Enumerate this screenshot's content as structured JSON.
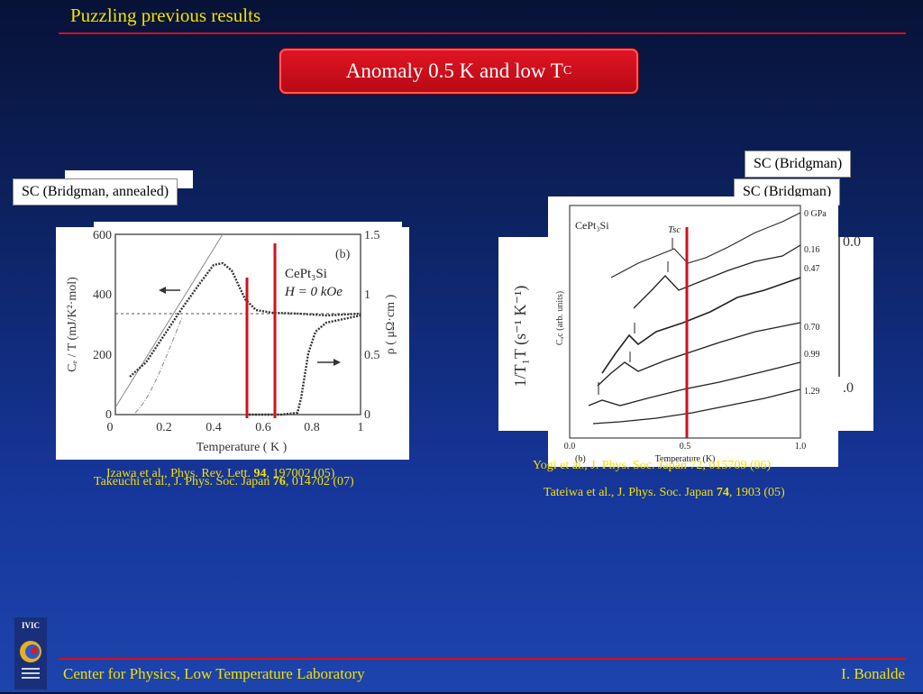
{
  "slide": {
    "title": "Puzzling previous results",
    "headline": "Anomaly 0.5 K and low T",
    "headline_sub": "C"
  },
  "labels": {
    "left_sc": "SC (Bridgman, annealed)",
    "right_sc_top": "SC (Bridgman)",
    "right_sc_mid": "SC (Bridgman)"
  },
  "left_plot": {
    "compound": "CePt₃Si",
    "field": "H = 0 kOe",
    "panel": "(b)",
    "xlabel": "Temperature ( K )",
    "ylabel_left": "Cₑ / T (mJ/K²·mol)",
    "ylabel_right": "ρ ( μΩ·cm )",
    "x_ticks": [
      "0",
      "0.2",
      "0.4",
      "0.6",
      "0.8",
      "1"
    ],
    "y_left_ticks": [
      "0",
      "200",
      "400",
      "600"
    ],
    "y_right_ticks": [
      "0",
      "0.5",
      "1",
      "1.5"
    ]
  },
  "right_plot": {
    "compound": "CePt₃Si",
    "tsc_label": "Tsc",
    "panel": "(b)",
    "xlabel": "Temperature (K)",
    "ylabel": "Cₐc (arb. units)",
    "x_ticks": [
      "0.0",
      "0.5",
      "1.0"
    ],
    "pressures": [
      "0 GPa",
      "0.16",
      "0.47",
      "0.70",
      "0.99",
      "1.29"
    ]
  },
  "behind_plot": {
    "ylabel": "1/T₁T (s⁻¹ K⁻¹)",
    "right_ticks": [
      "0.0",
      ".0"
    ]
  },
  "references": {
    "izawa_prefix": "Izawa et al., Phys. Rev. Lett. ",
    "izawa_vol": "94",
    "izawa_suffix": ", 197002 (05)",
    "takeuchi_prefix": "Takeuchi et al., J. Phys. Soc. Japan ",
    "takeuchi_vol": "76",
    "takeuchi_suffix": ", 014702 (07)",
    "yogi": "Yogi et al., J. Phys. Soc. Japan 72, 015709 (06)",
    "tateiwa_prefix": "Tateiwa et al., J. Phys. Soc. Japan ",
    "tateiwa_vol": "74",
    "tateiwa_suffix": ", 1903 (05)"
  },
  "footer": {
    "left": "Center for Physics, Low Temperature Laboratory",
    "right": "I. Bonalde",
    "logo_text": "IVIC"
  },
  "colors": {
    "accent_red": "#d01020",
    "title_yellow": "#f2e000",
    "background_top": "#071236",
    "background_bottom": "#1d44ad"
  }
}
